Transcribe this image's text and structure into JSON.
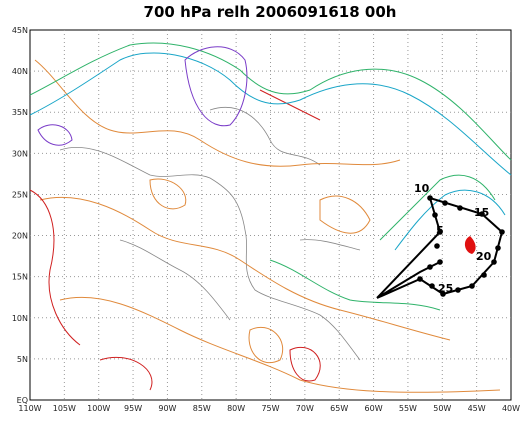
{
  "map": {
    "title": "700 hPa relh 2006091618 00h",
    "lon_labels": [
      "110W",
      "105W",
      "100W",
      "95W",
      "90W",
      "85W",
      "80W",
      "75W",
      "70W",
      "65W",
      "60W",
      "55W",
      "50W",
      "45W",
      "40W"
    ],
    "lat_labels": [
      "45N",
      "40N",
      "35N",
      "30N",
      "25N",
      "20N",
      "15N",
      "10N",
      "5N",
      "EQ"
    ],
    "track_labels": [
      "5",
      "10",
      "15",
      "20",
      "25"
    ]
  }
}
